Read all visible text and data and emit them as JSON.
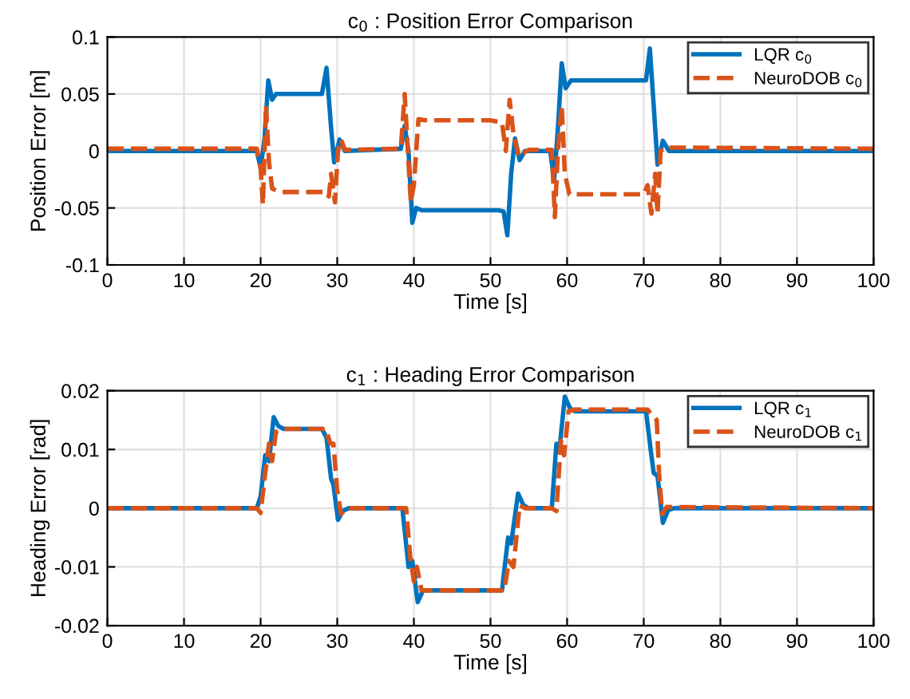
{
  "chart_data": [
    {
      "type": "line",
      "title": "c$_{0}$ : Position Error Comparison",
      "xlabel": "Time [s]",
      "ylabel": "Position Error [m]",
      "xlim": [
        0,
        100
      ],
      "xticks": [
        0,
        10,
        20,
        30,
        40,
        50,
        60,
        70,
        80,
        90,
        100
      ],
      "ylim": [
        -0.1,
        0.1
      ],
      "yticks": [
        {
          "value": -0.1,
          "label": "-0.1"
        },
        {
          "value": -0.05,
          "label": "-0.05"
        },
        0,
        0.05,
        0.1
      ],
      "grid": true,
      "legend": "top right",
      "series": [
        {
          "name": "LQR c$_{0}$",
          "color": "#0072bd",
          "line_style": "solid",
          "x": [
            0,
            19.5,
            20,
            20.5,
            21,
            21.5,
            22,
            28,
            28.6,
            29.2,
            29.6,
            30.3,
            31,
            38.3,
            38.8,
            39.3,
            39.8,
            40.3,
            41,
            51,
            51.7,
            52.2,
            52.7,
            53.2,
            53.8,
            54.5,
            57.8,
            58.3,
            58.8,
            59.3,
            59.8,
            60.5,
            70.3,
            70.8,
            71.3,
            71.8,
            72.5,
            73.3,
            100
          ],
          "values": [
            0,
            0,
            -0.015,
            0.01,
            0.062,
            0.045,
            0.05,
            0.05,
            0.073,
            0.02,
            -0.01,
            0.01,
            0,
            0.002,
            0.022,
            0,
            -0.063,
            -0.05,
            -0.052,
            -0.052,
            -0.053,
            -0.074,
            -0.02,
            0.011,
            -0.008,
            0,
            0,
            -0.026,
            0.02,
            0.077,
            0.055,
            0.062,
            0.062,
            0.09,
            0.04,
            -0.012,
            0.009,
            0,
            0
          ]
        },
        {
          "name": "NeuroDOB c$_{0}$",
          "color": "#d95319",
          "line_style": "dashed",
          "x": [
            0,
            19.5,
            20,
            20.3,
            20.7,
            21.1,
            21.5,
            22.5,
            28,
            28.6,
            28.9,
            29.2,
            29.7,
            30.1,
            30.5,
            31,
            38.3,
            38.8,
            39.3,
            39.6,
            40,
            40.6,
            41.5,
            50,
            51.5,
            52,
            52.5,
            53,
            53.7,
            54.5,
            55,
            58,
            58.4,
            58.8,
            59.3,
            59.7,
            60.3,
            61,
            70,
            70.5,
            71,
            71.5,
            71.8,
            72.2,
            72.8,
            100
          ],
          "values": [
            0.002,
            0.002,
            -0.015,
            -0.047,
            0.04,
            -0.01,
            -0.033,
            -0.036,
            -0.036,
            -0.036,
            -0.04,
            -0.02,
            -0.045,
            0,
            0.01,
            0.001,
            0.002,
            0.05,
            -0.01,
            -0.045,
            -0.03,
            0.028,
            0.027,
            0.027,
            0.025,
            0,
            0.045,
            0.015,
            -0.005,
            -0.001,
            0.001,
            0.001,
            -0.058,
            0,
            0.04,
            -0.02,
            -0.038,
            -0.038,
            -0.038,
            -0.03,
            -0.055,
            -0.02,
            -0.055,
            0,
            0.003,
            0.002
          ]
        }
      ]
    },
    {
      "type": "line",
      "title": "c$_{1}$ : Heading Error Comparison",
      "xlabel": "Time [s]",
      "ylabel": "Heading Error [rad]",
      "xlim": [
        0,
        100
      ],
      "xticks": [
        0,
        10,
        20,
        30,
        40,
        50,
        60,
        70,
        80,
        90,
        100
      ],
      "ylim": [
        -0.02,
        0.02
      ],
      "yticks": [
        {
          "value": -0.02,
          "label": "-0.02"
        },
        {
          "value": -0.01,
          "label": "-0.01"
        },
        0,
        0.01,
        0.02
      ],
      "grid": true,
      "legend": "top right",
      "series": [
        {
          "name": "LQR c$_{1}$",
          "color": "#0072bd",
          "line_style": "solid",
          "x": [
            0,
            19.5,
            20,
            20.6,
            21.1,
            21.7,
            22.3,
            23,
            28,
            28.6,
            29.2,
            29.5,
            30.1,
            30.7,
            31.5,
            38.5,
            39.3,
            39.8,
            40.5,
            41.2,
            51.5,
            52.3,
            52.7,
            53.6,
            54.3,
            55,
            58,
            58.6,
            59,
            59.7,
            60.4,
            61,
            70.3,
            70.9,
            71.3,
            71.8,
            72.5,
            73.2,
            74,
            100
          ],
          "values": [
            0,
            0,
            0.002,
            0.009,
            0.008,
            0.0155,
            0.014,
            0.0135,
            0.0135,
            0.012,
            0.005,
            0.004,
            -0.002,
            -0.0005,
            0,
            0,
            -0.01,
            -0.009,
            -0.016,
            -0.014,
            -0.014,
            -0.005,
            -0.006,
            0.0025,
            0.0005,
            0,
            0,
            0.011,
            0.01,
            0.019,
            0.017,
            0.0165,
            0.0165,
            0.01,
            0.006,
            0.0055,
            -0.0025,
            -0.0003,
            0,
            0
          ]
        },
        {
          "name": "NeuroDOB c$_{1}$",
          "color": "#d95319",
          "line_style": "dashed",
          "x": [
            0,
            19.5,
            20,
            20.6,
            21.1,
            21.5,
            22,
            23,
            28.5,
            29.1,
            29.5,
            30,
            30.5,
            31.2,
            39,
            39.5,
            40,
            40.4,
            41,
            51.8,
            52.4,
            53,
            53.8,
            54.5,
            58,
            58.6,
            59.2,
            59.6,
            60.2,
            61,
            70.5,
            71,
            71.7,
            72,
            72.4,
            73,
            100
          ],
          "values": [
            0,
            0,
            -0.0008,
            0.006,
            0.011,
            0.008,
            0.013,
            0.0135,
            0.0135,
            0.011,
            0.011,
            0.003,
            -0.001,
            0,
            0,
            -0.008,
            -0.0125,
            -0.01,
            -0.014,
            -0.014,
            -0.009,
            -0.01,
            0.0005,
            0,
            0,
            -0.0005,
            0.0115,
            0.009,
            0.0165,
            0.0168,
            0.0168,
            0.016,
            0.015,
            0.006,
            -0.001,
            0.0002,
            0
          ]
        }
      ]
    }
  ]
}
